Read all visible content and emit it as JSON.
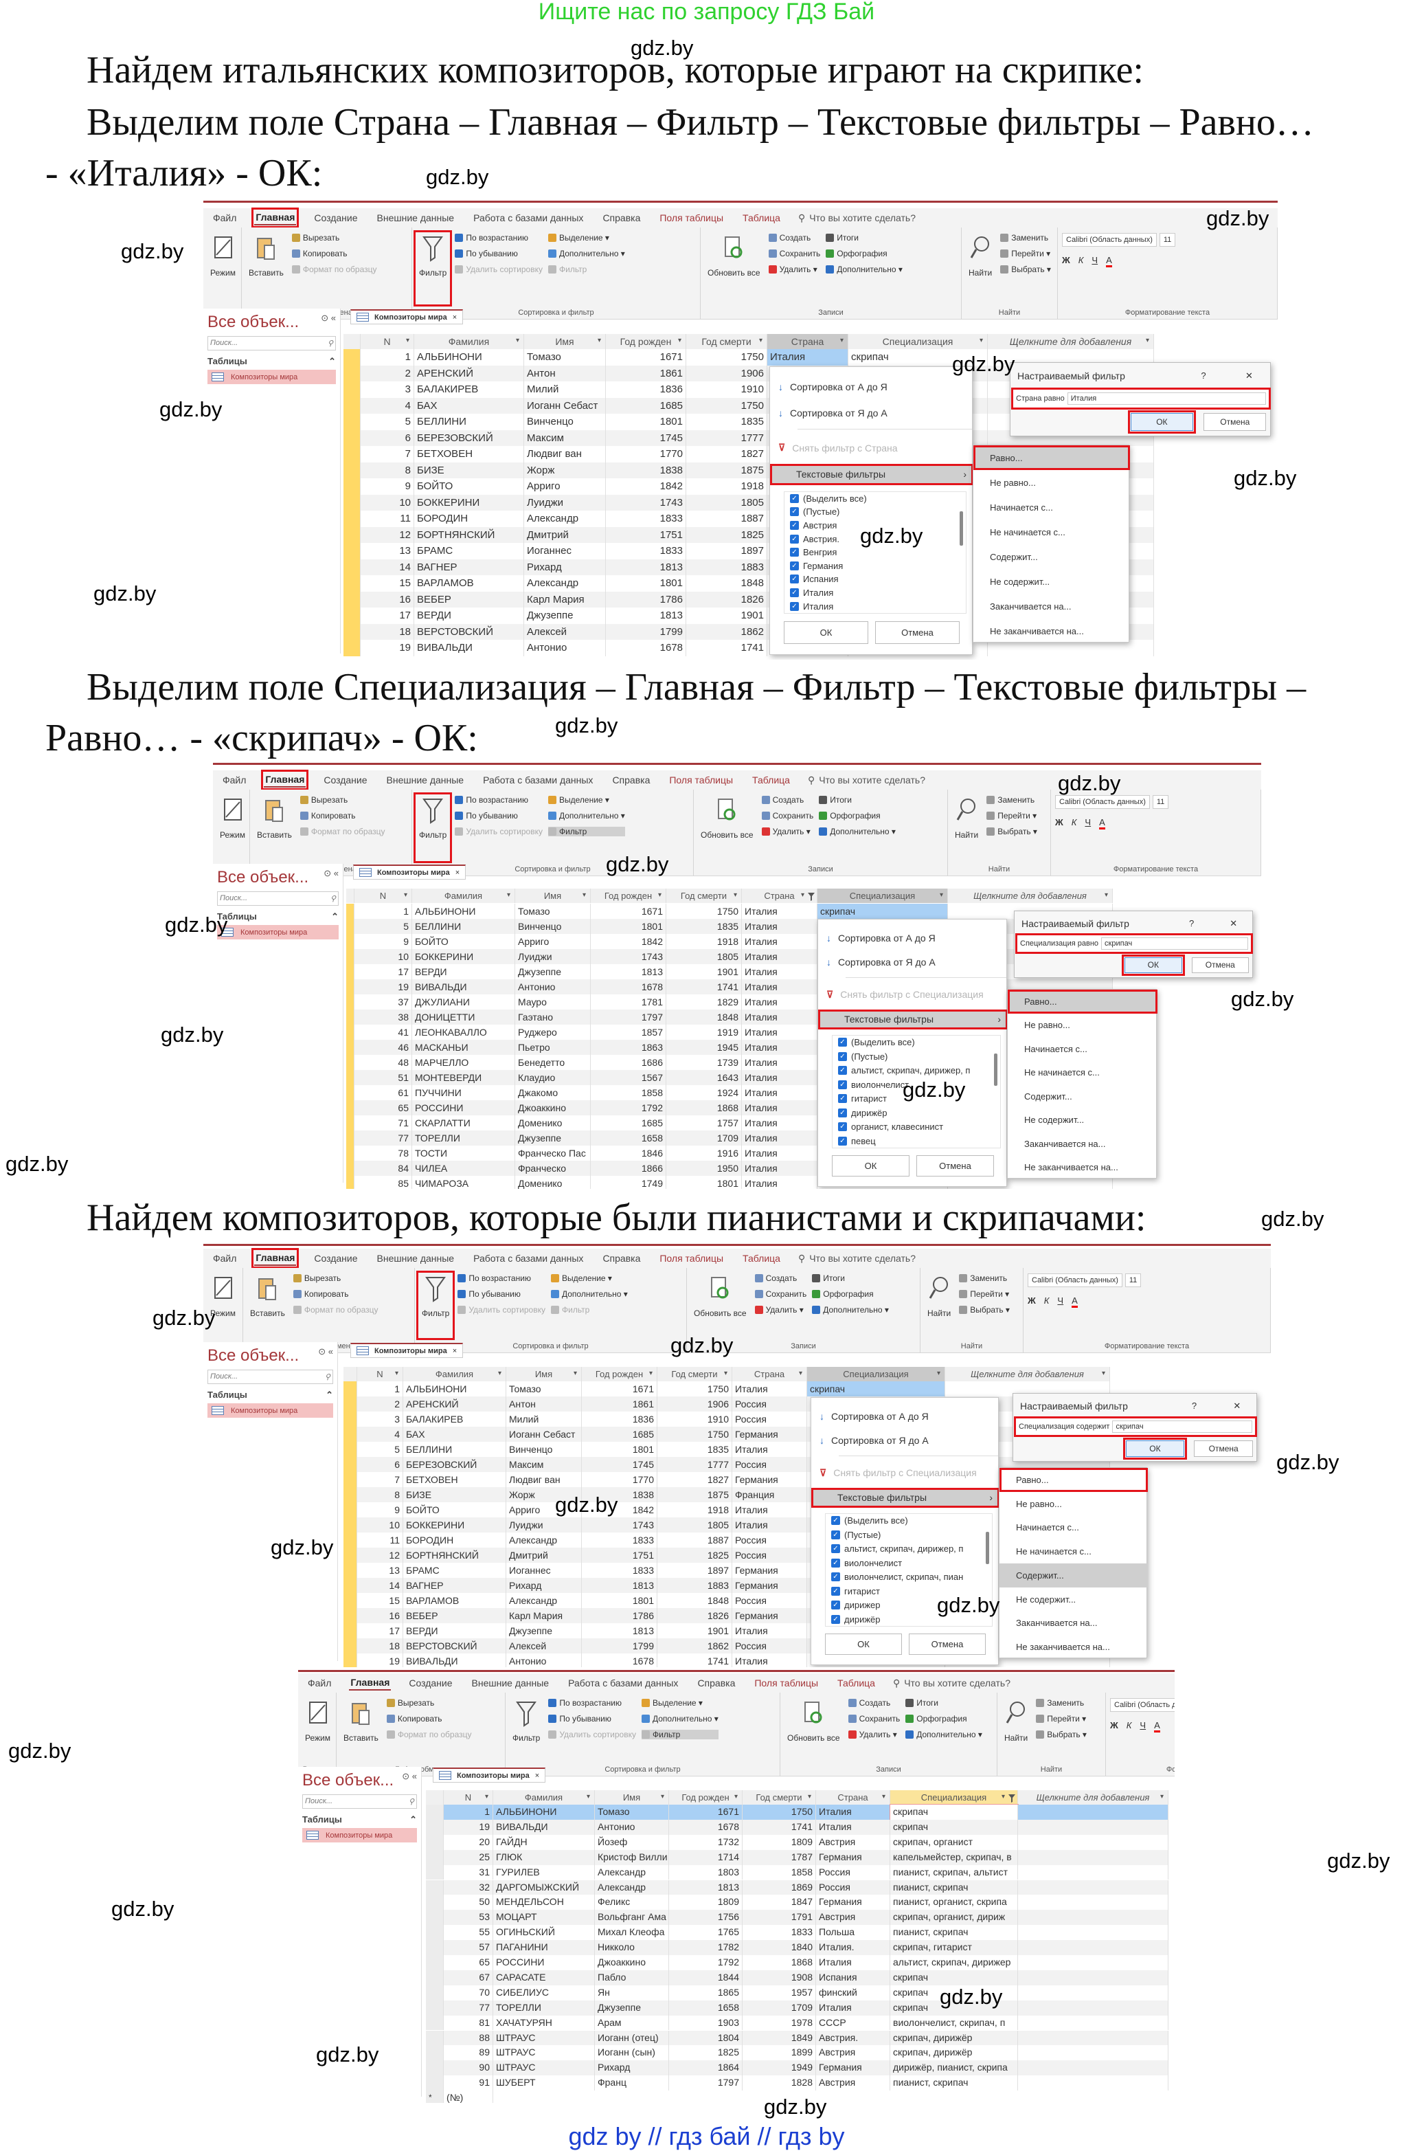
{
  "banner": "Ищите нас по запросу ГДЗ Бай",
  "watermark": "gdz.by",
  "text": {
    "p1": [
      "Найдем итальянских композиторов, которые играют на скрипке:",
      "Выделим поле Страна – Главная – Фильтр – Текстовые фильтры – Равно…",
      "- «Италия» - ОК:"
    ],
    "p2": [
      "Выделим поле Специализация – Главная – Фильтр – Текстовые фильтры –",
      "Равно… - «скрипач» - ОК:"
    ],
    "p3": "Найдем композиторов, которые были пианистами и скрипачами:"
  },
  "footer": "gdz by  //  гдз бай  //  гдз by",
  "colors": {
    "access_red": "#a4373a",
    "highlight_red": "#e3141b",
    "banner_green": "#2fd12f",
    "footer_blue": "#1b3fd1",
    "selected_row": "#a9d0f5",
    "record_selector": "#ffd966"
  },
  "access": {
    "ribbon_tabs": [
      "Файл",
      "Главная",
      "Создание",
      "Внешние данные",
      "Работа с базами данных",
      "Справка",
      "Поля таблицы",
      "Таблица"
    ],
    "tell_me": "Что вы хотите сделать?",
    "groups": [
      {
        "label": "Режимы",
        "big": [
          "Режим"
        ],
        "cols": []
      },
      {
        "label": "Буфер обмена",
        "big": [
          "Вставить"
        ],
        "cols": [
          [
            "Вырезать",
            "Копировать",
            "Формат по образцу"
          ]
        ]
      },
      {
        "label": "Сортировка и фильтр",
        "big": [
          "Фильтр"
        ],
        "cols": [
          [
            "По возрастанию",
            "По убыванию",
            "Удалить сортировку"
          ],
          [
            "Выделение ▾",
            "Дополнительно ▾",
            "Фильтр"
          ]
        ]
      },
      {
        "label": "Записи",
        "big": [
          "Обновить все"
        ],
        "cols": [
          [
            "Создать",
            "Сохранить",
            "Удалить ▾"
          ],
          [
            "Итоги",
            "Орфография",
            "Дополнительно ▾"
          ]
        ]
      },
      {
        "label": "Найти",
        "big": [
          "Найти"
        ],
        "cols": [
          [
            "Заменить",
            "Перейти ▾",
            "Выбрать ▾"
          ]
        ]
      },
      {
        "label": "Форматирование текста",
        "font": "Calibri (Область данных)",
        "size": "11",
        "fmt": [
          "Ж",
          "К",
          "Ч",
          "A"
        ]
      }
    ],
    "nav": {
      "title": "Все объек...",
      "search_placeholder": "Поиск...",
      "section": "Таблицы",
      "item": "Композиторы мира"
    },
    "table_tab": "Композиторы мира",
    "columns": [
      "N",
      "Фамилия",
      "Имя",
      "Год рожден",
      "Год смерти",
      "Страна",
      "Специализация",
      "Щелкните для добавления"
    ],
    "menu": {
      "sort_asc": "Сортировка от А до Я",
      "sort_desc": "Сортировка от Я до А",
      "text_filters": "Текстовые фильтры",
      "ok": "ОК",
      "cancel": "Отмена"
    },
    "submenu": [
      "Равно...",
      "Не равно...",
      "Начинается с...",
      "Не начинается с...",
      "Содержит...",
      "Не содержит...",
      "Заканчивается на...",
      "Не заканчивается на..."
    ],
    "dialog": {
      "title": "Настраиваемый фильтр",
      "help": "?",
      "close": "✕",
      "ok": "ОК",
      "cancel": "Отмена"
    }
  },
  "screenshots": [
    {
      "filter_column": "Страна",
      "rows": [
        [
          "1",
          "АЛЬБИНОНИ",
          "Томазо",
          "1671",
          "1750",
          "Италия",
          "скрипач"
        ],
        [
          "2",
          "АРЕНСКИЙ",
          "Антон",
          "1861",
          "1906",
          "",
          ""
        ],
        [
          "3",
          "БАЛАКИРЕВ",
          "Милий",
          "1836",
          "1910",
          "",
          ""
        ],
        [
          "4",
          "БАХ",
          "Иоганн Себаст",
          "1685",
          "1750",
          "",
          ""
        ],
        [
          "5",
          "БЕЛЛИНИ",
          "Винченцо",
          "1801",
          "1835",
          "",
          ""
        ],
        [
          "6",
          "БЕРЕЗОВСКИЙ",
          "Максим",
          "1745",
          "1777",
          "",
          ""
        ],
        [
          "7",
          "БЕТХОВЕН",
          "Людвиг ван",
          "1770",
          "1827",
          "",
          ""
        ],
        [
          "8",
          "БИЗЕ",
          "Жорж",
          "1838",
          "1875",
          "",
          ""
        ],
        [
          "9",
          "БОЙТО",
          "Арриго",
          "1842",
          "1918",
          "",
          ""
        ],
        [
          "10",
          "БОККЕРИНИ",
          "Луиджи",
          "1743",
          "1805",
          "",
          ""
        ],
        [
          "11",
          "БОРОДИН",
          "Александр",
          "1833",
          "1887",
          "",
          ""
        ],
        [
          "12",
          "БОРТНЯНСКИЙ",
          "Дмитрий",
          "1751",
          "1825",
          "",
          ""
        ],
        [
          "13",
          "БРАМС",
          "Иоганнес",
          "1833",
          "1897",
          "",
          ""
        ],
        [
          "14",
          "ВАГНЕР",
          "Рихард",
          "1813",
          "1883",
          "",
          ""
        ],
        [
          "15",
          "ВАРЛАМОВ",
          "Александр",
          "1801",
          "1848",
          "",
          ""
        ],
        [
          "16",
          "ВЕБЕР",
          "Карл Мария",
          "1786",
          "1826",
          "",
          ""
        ],
        [
          "17",
          "ВЕРДИ",
          "Джузеппе",
          "1813",
          "1901",
          "",
          ""
        ],
        [
          "18",
          "ВЕРСТОВСКИЙ",
          "Алексей",
          "1799",
          "1862",
          "",
          ""
        ],
        [
          "19",
          "ВИВАЛЬДИ",
          "Антонио",
          "1678",
          "1741",
          "",
          ""
        ]
      ],
      "menu": {
        "remove_filter": "Снять фильтр с Страна",
        "checklist": [
          "(Выделить все)",
          "(Пустые)",
          "Австрия",
          "Австрия.",
          "Венгрия",
          "Германия",
          "Испания",
          "Италия",
          "Италия"
        ]
      },
      "active_submenu": [
        "Равно..."
      ],
      "dialog": {
        "condition": "Страна равно",
        "value": "Италия"
      }
    },
    {
      "filter_column": "Специализация",
      "filter_applied_columns": [
        "Страна"
      ],
      "rows": [
        [
          "1",
          "АЛЬБИНОНИ",
          "Томазо",
          "1671",
          "1750",
          "Италия",
          "скрипач"
        ],
        [
          "5",
          "БЕЛЛИНИ",
          "Винченцо",
          "1801",
          "1835",
          "Италия",
          ""
        ],
        [
          "9",
          "БОЙТО",
          "Арриго",
          "1842",
          "1918",
          "Италия",
          ""
        ],
        [
          "10",
          "БОККЕРИНИ",
          "Луиджи",
          "1743",
          "1805",
          "Италия",
          ""
        ],
        [
          "17",
          "ВЕРДИ",
          "Джузеппе",
          "1813",
          "1901",
          "Италия",
          ""
        ],
        [
          "19",
          "ВИВАЛЬДИ",
          "Антонио",
          "1678",
          "1741",
          "Италия",
          ""
        ],
        [
          "37",
          "ДЖУЛИАНИ",
          "Мауро",
          "1781",
          "1829",
          "Италия",
          ""
        ],
        [
          "38",
          "ДОНИЦЕТТИ",
          "Гаэтано",
          "1797",
          "1848",
          "Италия",
          ""
        ],
        [
          "41",
          "ЛЕОНКАВАЛЛО",
          "Руджеро",
          "1857",
          "1919",
          "Италия",
          ""
        ],
        [
          "46",
          "МАСКАНЬИ",
          "Пьетро",
          "1863",
          "1945",
          "Италия",
          ""
        ],
        [
          "48",
          "МАРЧЕЛЛО",
          "Бенедетто",
          "1686",
          "1739",
          "Италия",
          ""
        ],
        [
          "51",
          "МОНТЕВЕРДИ",
          "Клаудио",
          "1567",
          "1643",
          "Италия",
          ""
        ],
        [
          "61",
          "ПУЧЧИНИ",
          "Джакомо",
          "1858",
          "1924",
          "Италия",
          ""
        ],
        [
          "65",
          "РОССИНИ",
          "Джоаккино",
          "1792",
          "1868",
          "Италия",
          ""
        ],
        [
          "71",
          "СКАРЛАТТИ",
          "Доменико",
          "1685",
          "1757",
          "Италия",
          ""
        ],
        [
          "77",
          "ТОРЕЛЛИ",
          "Джузеппе",
          "1658",
          "1709",
          "Италия",
          ""
        ],
        [
          "78",
          "ТОСТИ",
          "Франческо Пас",
          "1846",
          "1916",
          "Италия",
          ""
        ],
        [
          "84",
          "ЧИЛЕА",
          "Франческо",
          "1866",
          "1950",
          "Италия",
          ""
        ],
        [
          "85",
          "ЧИМАРОЗА",
          "Доменико",
          "1749",
          "1801",
          "Италия",
          ""
        ]
      ],
      "menu": {
        "remove_filter": "Снять фильтр с Специализация",
        "checklist": [
          "(Выделить все)",
          "(Пустые)",
          "альтист, скрипач, дирижер, п",
          "виолончелист",
          "гитарист",
          "дирижёр",
          "органист, клавесинист",
          "певец"
        ]
      },
      "active_submenu": [
        "Равно..."
      ],
      "dialog": {
        "condition": "Специализация равно",
        "value": "скрипач"
      }
    },
    {
      "filter_column": "Специализация",
      "rows": [
        [
          "1",
          "АЛЬБИНОНИ",
          "Томазо",
          "1671",
          "1750",
          "Италия",
          "скрипач"
        ],
        [
          "2",
          "АРЕНСКИЙ",
          "Антон",
          "1861",
          "1906",
          "Россия",
          ""
        ],
        [
          "3",
          "БАЛАКИРЕВ",
          "Милий",
          "1836",
          "1910",
          "Россия",
          ""
        ],
        [
          "4",
          "БАХ",
          "Иоганн Себаст",
          "1685",
          "1750",
          "Германия",
          ""
        ],
        [
          "5",
          "БЕЛЛИНИ",
          "Винченцо",
          "1801",
          "1835",
          "Италия",
          ""
        ],
        [
          "6",
          "БЕРЕЗОВСКИЙ",
          "Максим",
          "1745",
          "1777",
          "Россия",
          ""
        ],
        [
          "7",
          "БЕТХОВЕН",
          "Людвиг ван",
          "1770",
          "1827",
          "Германия",
          ""
        ],
        [
          "8",
          "БИЗЕ",
          "Жорж",
          "1838",
          "1875",
          "Франция",
          ""
        ],
        [
          "9",
          "БОЙТО",
          "Арриго",
          "1842",
          "1918",
          "Италия",
          ""
        ],
        [
          "10",
          "БОККЕРИНИ",
          "Луиджи",
          "1743",
          "1805",
          "Италия",
          ""
        ],
        [
          "11",
          "БОРОДИН",
          "Александр",
          "1833",
          "1887",
          "Россия",
          ""
        ],
        [
          "12",
          "БОРТНЯНСКИЙ",
          "Дмитрий",
          "1751",
          "1825",
          "Россия",
          ""
        ],
        [
          "13",
          "БРАМС",
          "Иоганнес",
          "1833",
          "1897",
          "Германия",
          ""
        ],
        [
          "14",
          "ВАГНЕР",
          "Рихард",
          "1813",
          "1883",
          "Германия",
          ""
        ],
        [
          "15",
          "ВАРЛАМОВ",
          "Александр",
          "1801",
          "1848",
          "Россия",
          ""
        ],
        [
          "16",
          "ВЕБЕР",
          "Карл Мария",
          "1786",
          "1826",
          "Германия",
          ""
        ],
        [
          "17",
          "ВЕРДИ",
          "Джузеппе",
          "1813",
          "1901",
          "Италия",
          ""
        ],
        [
          "18",
          "ВЕРСТОВСКИЙ",
          "Алексей",
          "1799",
          "1862",
          "Россия",
          ""
        ],
        [
          "19",
          "ВИВАЛЬДИ",
          "Антонио",
          "1678",
          "1741",
          "Италия",
          ""
        ]
      ],
      "menu": {
        "remove_filter": "Снять фильтр с Специализация",
        "checklist": [
          "(Выделить все)",
          "(Пустые)",
          "альтист, скрипач, дирижер, п",
          "виолончелист",
          "виолончелист, скрипач, пиан",
          "гитарист",
          "дирижер",
          "дирижёр"
        ]
      },
      "active_submenu": [
        "Равно...",
        "Содержит..."
      ],
      "dialog": {
        "condition": "Специализация содержит",
        "value": "скрипач"
      }
    },
    {
      "filter_applied_columns": [
        "Специализация"
      ],
      "rows": [
        [
          "1",
          "АЛЬБИНОНИ",
          "Томазо",
          "1671",
          "1750",
          "Италия",
          "скрипач"
        ],
        [
          "19",
          "ВИВАЛЬДИ",
          "Антонио",
          "1678",
          "1741",
          "Италия",
          "скрипач"
        ],
        [
          "20",
          "ГАЙДН",
          "Йозеф",
          "1732",
          "1809",
          "Австрия",
          "скрипач, органист"
        ],
        [
          "25",
          "ГЛЮК",
          "Кристоф Вилли",
          "1714",
          "1787",
          "Германия",
          "капельмейстер, скрипач, в"
        ],
        [
          "31",
          "ГУРИЛЕВ",
          "Александр",
          "1803",
          "1858",
          "Россия",
          "пианист, скрипач, альтист"
        ],
        [
          "32",
          "ДАРГОМЫЖСКИЙ",
          "Александр",
          "1813",
          "1869",
          "Россия",
          "пианист, скрипач"
        ],
        [
          "50",
          "МЕНДЕЛЬСОН",
          "Феликс",
          "1809",
          "1847",
          "Германия",
          "пианист, органист, скрипа"
        ],
        [
          "53",
          "МОЦАРТ",
          "Вольфганг Ама",
          "1756",
          "1791",
          "Австрия",
          "скрипач, органист, дириж"
        ],
        [
          "55",
          "ОГИНЬСКИЙ",
          "Михал Клеофа",
          "1765",
          "1833",
          "Польша",
          "пианист, скрипач"
        ],
        [
          "57",
          "ПАГАНИНИ",
          "Никколо",
          "1782",
          "1840",
          "Италия.",
          "скрипач, гитарист"
        ],
        [
          "65",
          "РОССИНИ",
          "Джоаккино",
          "1792",
          "1868",
          "Италия",
          "альтист, скрипач, дирижер"
        ],
        [
          "67",
          "САРАСАТЕ",
          "Пабло",
          "1844",
          "1908",
          "Испания",
          "скрипач"
        ],
        [
          "70",
          "СИБЕЛИУС",
          "Ян",
          "1865",
          "1957",
          "финский",
          "скрипач"
        ],
        [
          "77",
          "ТОРЕЛЛИ",
          "Джузеппе",
          "1658",
          "1709",
          "Италия",
          "скрипач"
        ],
        [
          "81",
          "ХАЧАТУРЯН",
          "Арам",
          "1903",
          "1978",
          "СССР",
          "виолончелист, скрипач, п"
        ],
        [
          "88",
          "ШТРАУС",
          "Иоганн (отец)",
          "1804",
          "1849",
          "Австрия.",
          "скрипач, дирижёр"
        ],
        [
          "89",
          "ШТРАУС",
          "Иоганн (сын)",
          "1825",
          "1899",
          "Австрия",
          "скрипач, дирижёр"
        ],
        [
          "90",
          "ШТРАУС",
          "Рихард",
          "1864",
          "1949",
          "Германия",
          "дирижёр, пианист, скрипа"
        ],
        [
          "91",
          "ШУБЕРТ",
          "Франц",
          "1797",
          "1828",
          "Австрия",
          "пианист, скрипач"
        ]
      ],
      "new_row": {
        "marker": "*",
        "label": "(№)"
      }
    }
  ]
}
